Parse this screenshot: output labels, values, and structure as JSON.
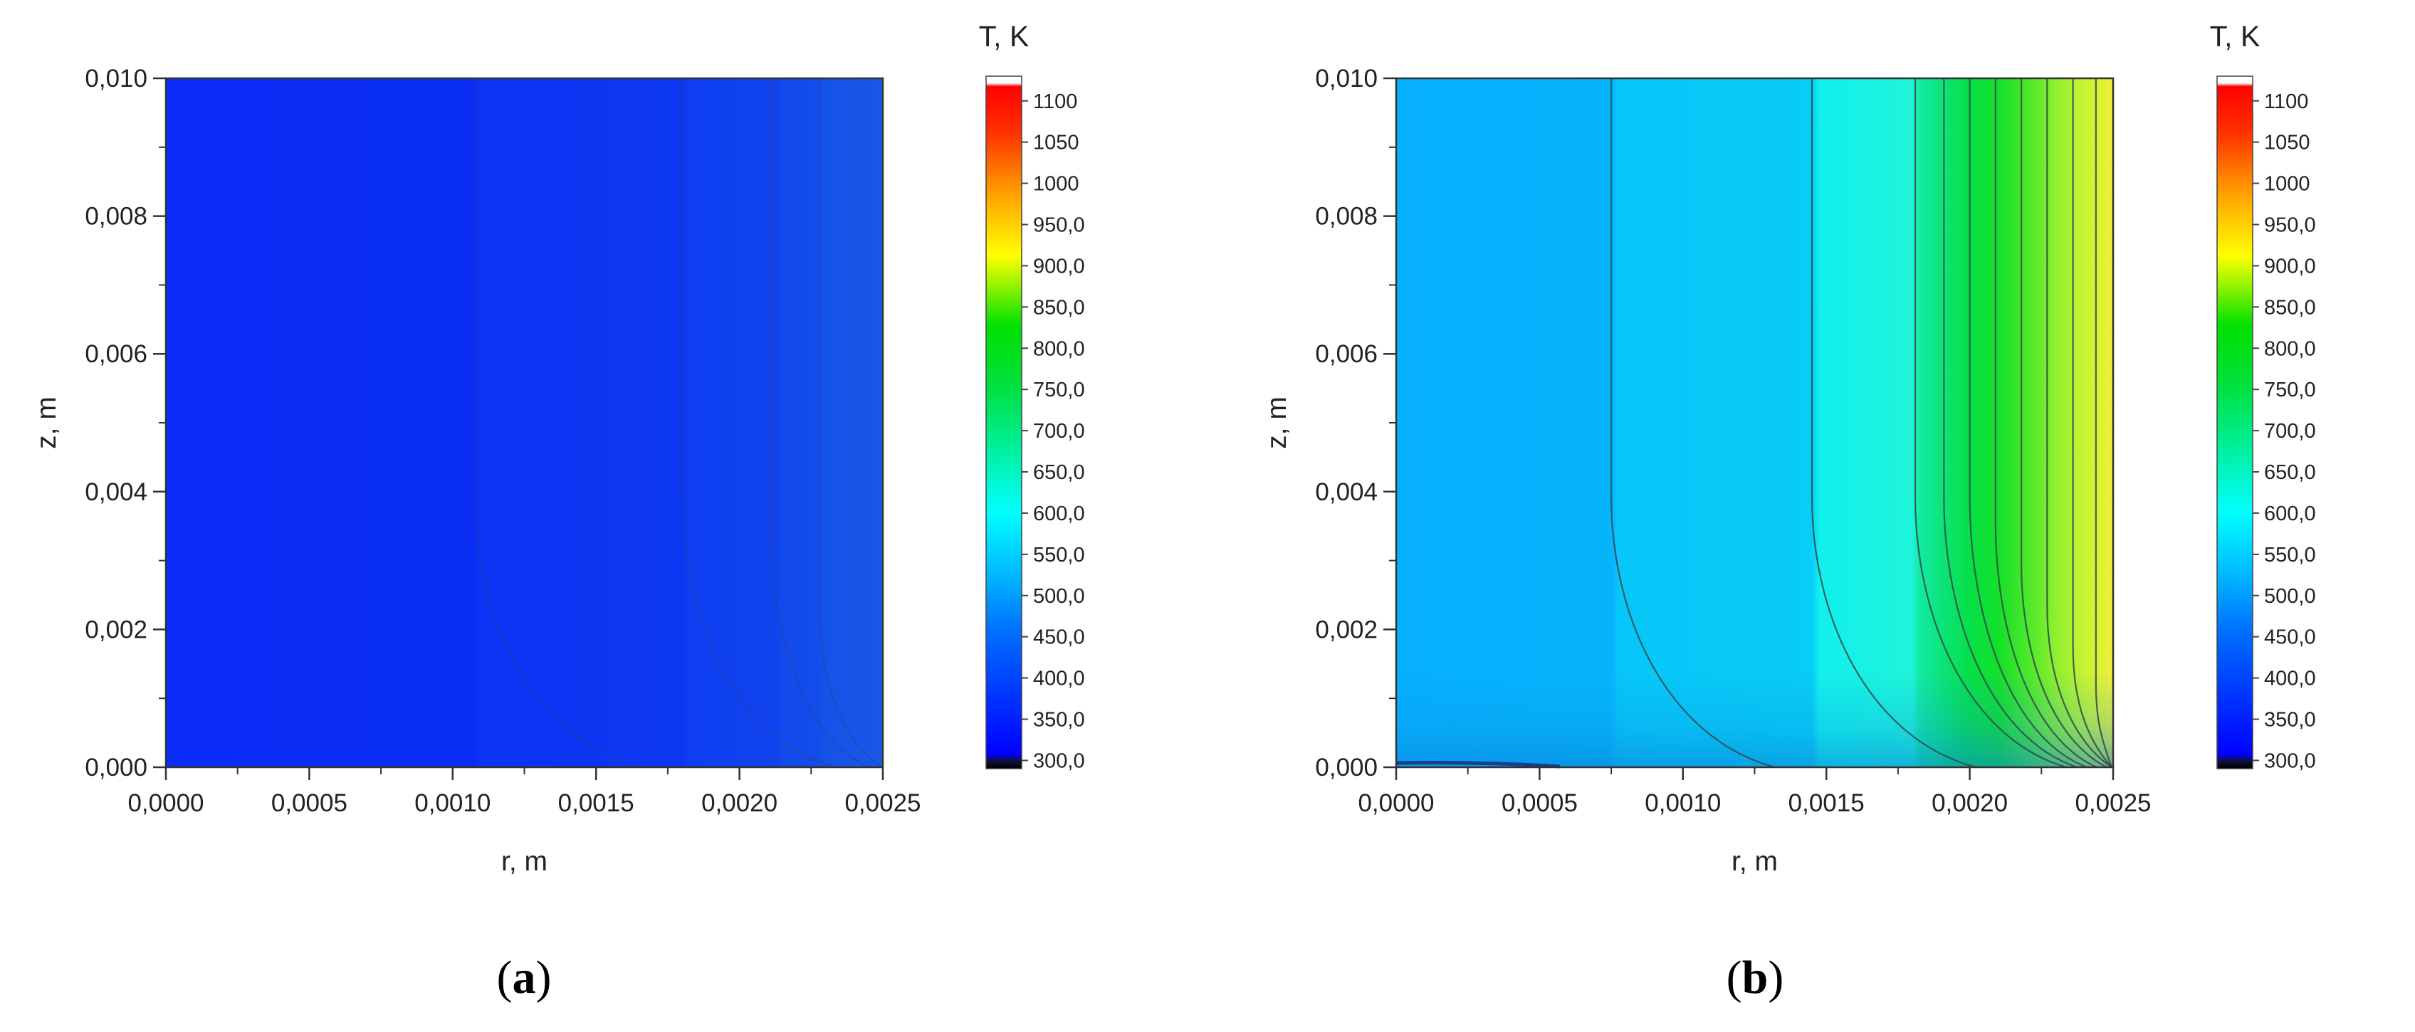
{
  "chart_data": [
    {
      "type": "heatmap",
      "panel_label": {
        "open": "(",
        "letter": "a",
        "close": ")"
      },
      "xlabel": "r, m",
      "ylabel": "z, m",
      "xlim": [
        0,
        0.0025
      ],
      "ylim": [
        0,
        0.01
      ],
      "x_ticks": [
        "0,0000",
        "0,0005",
        "0,0010",
        "0,0015",
        "0,0020",
        "0,0025"
      ],
      "y_ticks": [
        "0,000",
        "0,002",
        "0,004",
        "0,006",
        "0,008",
        "0,010"
      ],
      "field_description": "temperature field, nearly uniform ~320-345 K, slightly warmer near r=0,0025",
      "contour_r_positions": [
        0.00108,
        0.0018,
        0.00211,
        0.00228
      ],
      "colorbar": {
        "title": "T, K",
        "range": [
          290,
          1130
        ],
        "ticks": [
          "300,0",
          "350,0",
          "400,0",
          "450,0",
          "500,0",
          "550,0",
          "600,0",
          "650,0",
          "700,0",
          "750,0",
          "800,0",
          "850,0",
          "900,0",
          "950,0",
          "1000",
          "1050",
          "1100"
        ]
      }
    },
    {
      "type": "heatmap",
      "panel_label": {
        "open": "(",
        "letter": "b",
        "close": ")"
      },
      "xlabel": "r, m",
      "ylabel": "z, m",
      "xlim": [
        0,
        0.0025
      ],
      "ylim": [
        0,
        0.01
      ],
      "x_ticks": [
        "0,0000",
        "0,0005",
        "0,0010",
        "0,0015",
        "0,0020",
        "0,0025"
      ],
      "y_ticks": [
        "0,000",
        "0,002",
        "0,004",
        "0,006",
        "0,008",
        "0,010"
      ],
      "field_description": "temperature field rising from ~450 K at r=0 to ~900 K at r=0,0025",
      "contour_r_positions": [
        0.00075,
        0.00145,
        0.00181,
        0.00191,
        0.002,
        0.00209,
        0.00218,
        0.00227,
        0.00236,
        0.00244
      ],
      "colorbar": {
        "title": "T, K",
        "range": [
          290,
          1130
        ],
        "ticks": [
          "300,0",
          "350,0",
          "400,0",
          "450,0",
          "500,0",
          "550,0",
          "600,0",
          "650,0",
          "700,0",
          "750,0",
          "800,0",
          "850,0",
          "900,0",
          "950,0",
          "1000",
          "1050",
          "1100"
        ]
      }
    }
  ]
}
